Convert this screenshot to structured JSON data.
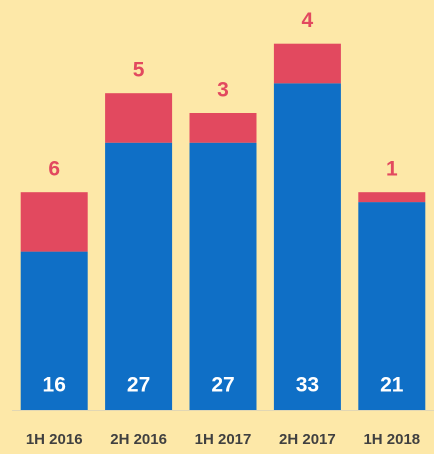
{
  "chart_data": {
    "type": "stacked_bar",
    "categories": [
      "1H 2016",
      "2H 2016",
      "1H 2017",
      "2H 2017",
      "1H 2018"
    ],
    "series": [
      {
        "color": "#0f6fc6",
        "values": [
          16,
          27,
          27,
          33,
          21
        ]
      },
      {
        "color": "#e2495f",
        "values": [
          6,
          5,
          3,
          4,
          1
        ]
      }
    ],
    "ylim": [
      0,
      40
    ]
  }
}
